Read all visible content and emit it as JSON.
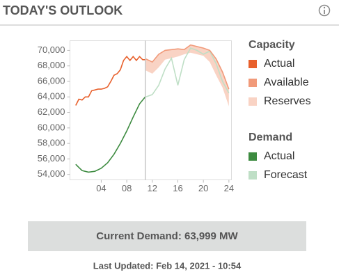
{
  "header": {
    "title": "TODAY'S OUTLOOK"
  },
  "chart_data": {
    "type": "line",
    "xlim": [
      -0.9,
      24.4
    ],
    "ylim": [
      53300,
      71250
    ],
    "xticks": [
      {
        "value": 4,
        "label": "04"
      },
      {
        "value": 8,
        "label": "08"
      },
      12,
      16,
      20,
      24
    ],
    "yticks": [
      {
        "value": 54000,
        "label": "54,000"
      },
      {
        "value": 56000,
        "label": "56,000"
      },
      {
        "value": 58000,
        "label": "58,000"
      },
      {
        "value": 60000,
        "label": "60,000"
      },
      {
        "value": 62000,
        "label": "62,000"
      },
      {
        "value": 64000,
        "label": "64,000"
      },
      {
        "value": 66000,
        "label": "66,000"
      },
      {
        "value": 68000,
        "label": "68,000"
      },
      {
        "value": 70000,
        "label": "70,000"
      }
    ],
    "current_time_x": 10.9,
    "series_groups": [
      {
        "name": "Capacity",
        "series": [
          {
            "name": "Actual",
            "color": "#e8602c",
            "style": "line",
            "x": [
              0,
              0.5,
              1,
              1.5,
              2,
              2.5,
              3,
              3.5,
              4,
              4.5,
              5,
              5.5,
              6,
              6.5,
              7,
              7.5,
              8,
              8.5,
              9,
              9.5,
              10,
              10.5,
              10.9
            ],
            "values": [
              62900,
              63700,
              63600,
              64000,
              64000,
              64800,
              64900,
              65000,
              65000,
              65100,
              65300,
              66000,
              66800,
              67000,
              67500,
              68700,
              69200,
              68700,
              69200,
              68700,
              69200,
              68800,
              68800
            ]
          },
          {
            "name": "Available",
            "color": "#f19a7a",
            "style": "line",
            "x": [
              11,
              12,
              13,
              14,
              15,
              16,
              17,
              18,
              19,
              20,
              21,
              22,
              23,
              24
            ],
            "values": [
              68900,
              68500,
              69500,
              70000,
              70100,
              70200,
              70100,
              70700,
              70500,
              70300,
              70000,
              68900,
              67200,
              65000
            ]
          },
          {
            "name": "Reserves",
            "color": "#f9d3c4",
            "style": "band",
            "x": [
              11,
              12,
              13,
              14,
              15,
              16,
              17,
              18,
              19,
              20,
              21,
              22,
              23,
              24
            ],
            "values": [
              67400,
              67000,
              67800,
              68800,
              69000,
              69200,
              69500,
              69700,
              69500,
              69300,
              68500,
              66800,
              65200,
              62800
            ]
          }
        ]
      },
      {
        "name": "Demand",
        "series": [
          {
            "name": "Actual",
            "color": "#3d8b40",
            "style": "line",
            "x": [
              0,
              0.5,
              1,
              2,
              3,
              4,
              5,
              6,
              7,
              8,
              9,
              10,
              10.9
            ],
            "values": [
              55300,
              54900,
              54500,
              54300,
              54400,
              54800,
              55500,
              56600,
              58000,
              59600,
              61400,
              63100,
              64000
            ]
          },
          {
            "name": "Forecast",
            "color": "#bfdfc6",
            "style": "line",
            "x": [
              11,
              12,
              13,
              14,
              15,
              16,
              17,
              18,
              19,
              20,
              21,
              22,
              23,
              24
            ],
            "values": [
              64000,
              64300,
              65500,
              67600,
              69000,
              65500,
              68800,
              70300,
              70000,
              69500,
              69900,
              68300,
              66000,
              64500
            ]
          }
        ]
      }
    ]
  },
  "footer": {
    "current_demand": "Current Demand: 63,999 MW",
    "last_updated": "Last Updated: Feb 14, 2021 - 10:54"
  }
}
